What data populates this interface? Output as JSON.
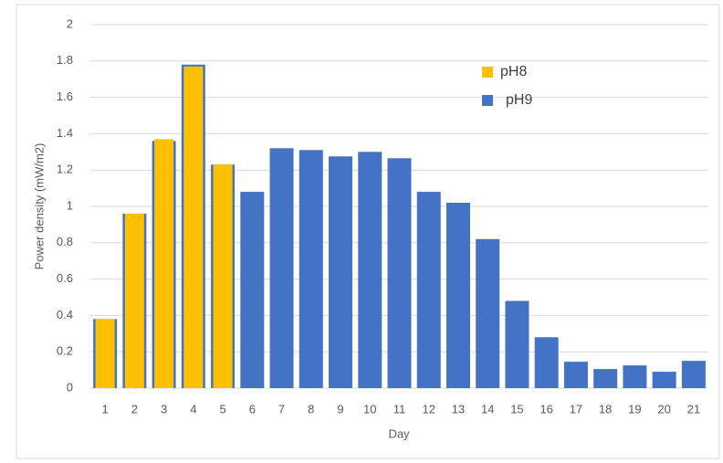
{
  "chart_data": {
    "type": "bar",
    "x_label": "Day",
    "y_label": "Power density (mW/m2)",
    "categories": [
      "1",
      "2",
      "3",
      "4",
      "5",
      "6",
      "7",
      "8",
      "9",
      "10",
      "11",
      "12",
      "13",
      "14",
      "15",
      "16",
      "17",
      "18",
      "19",
      "20",
      "21"
    ],
    "series": [
      {
        "name": "pH9",
        "color": "#4472c4",
        "values": [
          0.38,
          0.96,
          1.36,
          1.78,
          1.23,
          1.08,
          1.32,
          1.31,
          1.275,
          1.3,
          1.265,
          1.08,
          1.02,
          0.82,
          0.48,
          0.28,
          0.145,
          0.105,
          0.125,
          0.09,
          0.15
        ]
      },
      {
        "name": "pH8",
        "color": "#ffc000",
        "values": [
          0.38,
          0.96,
          1.37,
          1.77,
          1.23,
          null,
          null,
          null,
          null,
          null,
          null,
          null,
          null,
          null,
          null,
          null,
          null,
          null,
          null,
          null,
          null
        ]
      }
    ],
    "ylim": [
      0,
      2
    ],
    "yticks": [
      0,
      0.2,
      0.4,
      0.6,
      0.8,
      1,
      1.2,
      1.4,
      1.6,
      1.8,
      2
    ],
    "grid": true
  }
}
